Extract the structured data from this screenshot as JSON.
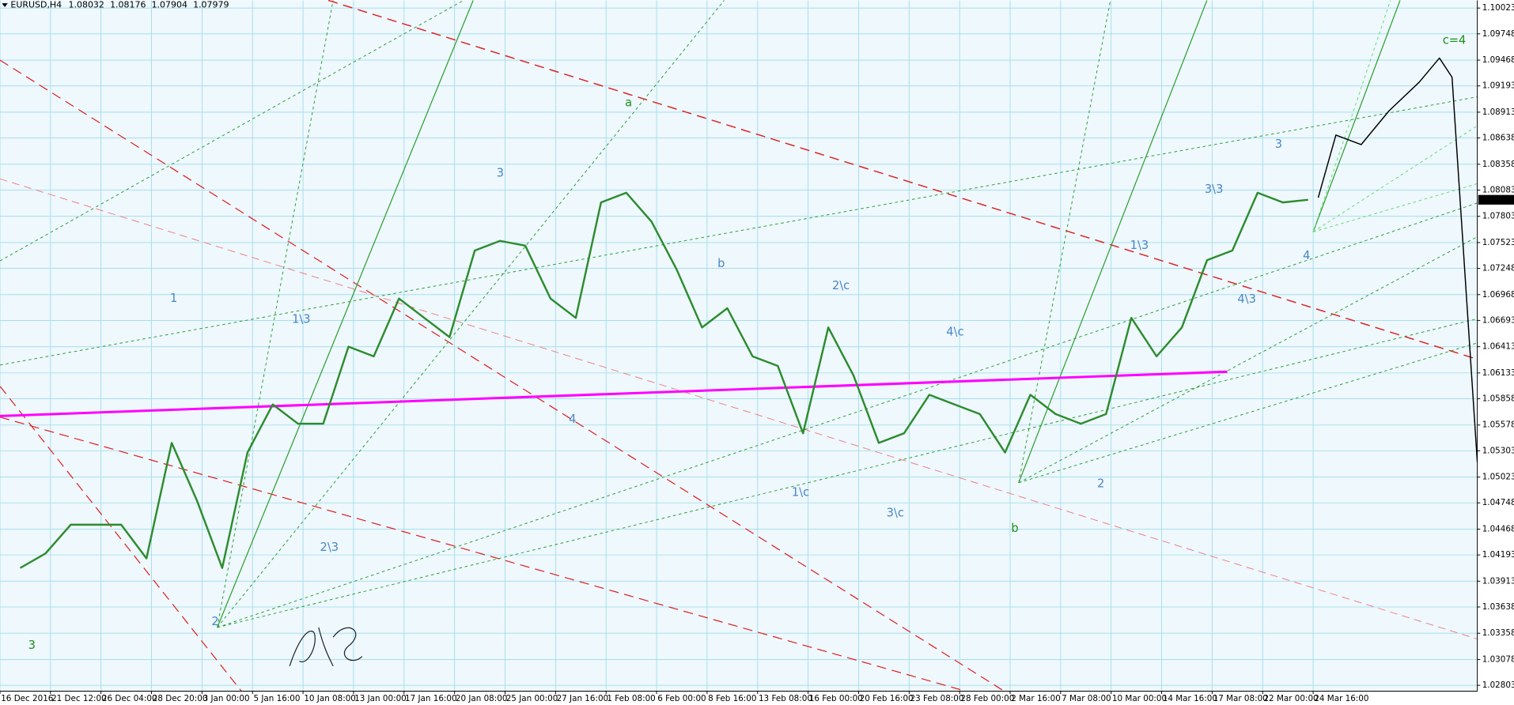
{
  "chart_data": {
    "type": "line",
    "symbol": "EURUSD,H4",
    "ohlc": [
      1.08032,
      1.08176,
      1.07904,
      1.07979
    ],
    "xlim": [
      0,
      58.5
    ],
    "ylim": [
      1.02741,
      1.10105
    ],
    "grid": true,
    "xticks": [
      {
        "value": 0,
        "label": "16 Dec 2016"
      },
      {
        "value": 2,
        "label": "21 Dec 12:00"
      },
      {
        "value": 4,
        "label": "26 Dec 04:00"
      },
      {
        "value": 6,
        "label": "28 Dec 20:00"
      },
      {
        "value": 8,
        "label": "3 Jan 00:00"
      },
      {
        "value": 10,
        "label": "5 Jan 16:00"
      },
      {
        "value": 12,
        "label": "10 Jan 08:00"
      },
      {
        "value": 14,
        "label": "13 Jan 00:00"
      },
      {
        "value": 16,
        "label": "17 Jan 16:00"
      },
      {
        "value": 18,
        "label": "20 Jan 08:00"
      },
      {
        "value": 20,
        "label": "25 Jan 00:00"
      },
      {
        "value": 22,
        "label": "27 Jan 16:00"
      },
      {
        "value": 24,
        "label": "1 Feb 08:00"
      },
      {
        "value": 26,
        "label": "6 Feb 00:00"
      },
      {
        "value": 28,
        "label": "8 Feb 16:00"
      },
      {
        "value": 30,
        "label": "13 Feb 08:00"
      },
      {
        "value": 32,
        "label": "16 Feb 00:00"
      },
      {
        "value": 34,
        "label": "20 Feb 16:00"
      },
      {
        "value": 36,
        "label": "23 Feb 08:00"
      },
      {
        "value": 38,
        "label": "28 Feb 00:00"
      },
      {
        "value": 40,
        "label": "2 Mar 16:00"
      },
      {
        "value": 42,
        "label": "7 Mar 08:00"
      },
      {
        "value": 44,
        "label": "10 Mar 00:00"
      },
      {
        "value": 46,
        "label": "14 Mar 16:00"
      },
      {
        "value": 48,
        "label": "17 Mar 08:00"
      },
      {
        "value": 50,
        "label": "22 Mar 00:00"
      },
      {
        "value": 52,
        "label": "24 Mar 16:00"
      }
    ],
    "yticks": [
      1.02803,
      1.03078,
      1.03358,
      1.03638,
      1.03913,
      1.04193,
      1.04468,
      1.04748,
      1.05023,
      1.05303,
      1.05578,
      1.05858,
      1.06133,
      1.06413,
      1.06693,
      1.06968,
      1.07248,
      1.07523,
      1.07803,
      1.08083,
      1.08358,
      1.08638,
      1.08913,
      1.09193,
      1.09468,
      1.09748,
      1.10023
    ],
    "series": [
      {
        "color": "#2e8b2e",
        "x": [
          0.8,
          1.8,
          2.8,
          3.8,
          4.8,
          5.8,
          6.8,
          7.8,
          8.8,
          9.8,
          10.8,
          11.8,
          12.8,
          13.8,
          14.8,
          15.8,
          16.8,
          17.8,
          18.8,
          19.8,
          20.8,
          21.8,
          22.8,
          23.8,
          24.8,
          25.8,
          26.8,
          27.8,
          28.8,
          29.8,
          30.8,
          31.8,
          32.8,
          33.8,
          34.8,
          35.8,
          36.8,
          37.8,
          38.8,
          39.8,
          40.8,
          41.8,
          42.8,
          43.8,
          44.8,
          45.8,
          46.8,
          47.8,
          48.8,
          49.8,
          50.8,
          51.8
        ],
        "values": [
          1.04054,
          1.04208,
          1.04515,
          1.04515,
          1.04515,
          1.04156,
          1.05387,
          1.04772,
          1.04054,
          1.05285,
          1.05797,
          1.05592,
          1.05592,
          1.06413,
          1.0631,
          1.06926,
          1.0672,
          1.06515,
          1.07438,
          1.07541,
          1.0749,
          1.06926,
          1.0672,
          1.07951,
          1.08054,
          1.07746,
          1.07233,
          1.06618,
          1.06823,
          1.0631,
          1.06208,
          1.0549,
          1.06618,
          1.06105,
          1.05387,
          1.0549,
          1.059,
          1.05797,
          1.05695,
          1.05285,
          1.059,
          1.05695,
          1.05592,
          1.05695,
          1.0672,
          1.0631,
          1.06618,
          1.07336,
          1.07438,
          1.08054,
          1.07951,
          1.07979
        ]
      },
      {
        "color": "#000000",
        "x": [
          52.2,
          52.9,
          53.9,
          55.0,
          56.2,
          57.0,
          57.5,
          58.5
        ],
        "values": [
          1.08002,
          1.08669,
          1.08567,
          1.08926,
          1.09233,
          1.0949,
          1.09285,
          1.05182
        ]
      }
    ],
    "trendline": {
      "color": "#ff00ff",
      "x": [
        0,
        48.6
      ],
      "values": [
        1.05674,
        1.06146
      ]
    },
    "annotations": [
      {
        "text": "a",
        "x": 24.89,
        "y": 1.09008,
        "color": "#1f8f1f"
      },
      {
        "text": "b",
        "x": 40.19,
        "y": 1.04474,
        "color": "#1f8f1f"
      },
      {
        "text": "c=4",
        "x": 57.59,
        "y": 1.09674,
        "color": "#1f8f1f"
      },
      {
        "text": "3",
        "x": 1.26,
        "y": 1.03223,
        "color": "#1f8f1f"
      },
      {
        "text": "1",
        "x": 6.88,
        "y": 1.06926,
        "color": "#4a86c8"
      },
      {
        "text": "2",
        "x": 8.52,
        "y": 1.03479,
        "color": "#4a86c8"
      },
      {
        "text": "1\\3",
        "x": 11.93,
        "y": 1.067,
        "color": "#4a86c8"
      },
      {
        "text": "2\\3",
        "x": 13.04,
        "y": 1.04269,
        "color": "#4a86c8"
      },
      {
        "text": "3",
        "x": 19.81,
        "y": 1.08259,
        "color": "#4a86c8"
      },
      {
        "text": "4",
        "x": 22.67,
        "y": 1.05633,
        "color": "#4a86c8"
      },
      {
        "text": "b",
        "x": 28.56,
        "y": 1.07295,
        "color": "#4a86c8"
      },
      {
        "text": "1\\c",
        "x": 31.7,
        "y": 1.04854,
        "color": "#4a86c8"
      },
      {
        "text": "2\\c",
        "x": 33.3,
        "y": 1.07059,
        "color": "#4a86c8"
      },
      {
        "text": "3\\c",
        "x": 35.45,
        "y": 1.04638,
        "color": "#4a86c8"
      },
      {
        "text": "4\\c",
        "x": 37.82,
        "y": 1.06567,
        "color": "#4a86c8"
      },
      {
        "text": "2",
        "x": 43.59,
        "y": 1.04946,
        "color": "#4a86c8"
      },
      {
        "text": "1\\3",
        "x": 45.12,
        "y": 1.0749,
        "color": "#4a86c8"
      },
      {
        "text": "3\\3",
        "x": 48.07,
        "y": 1.08085,
        "color": "#4a86c8"
      },
      {
        "text": "4\\3",
        "x": 49.37,
        "y": 1.06915,
        "color": "#4a86c8"
      },
      {
        "text": "3",
        "x": 50.63,
        "y": 1.08567,
        "color": "#4a86c8"
      },
      {
        "text": "4",
        "x": 51.74,
        "y": 1.07377,
        "color": "#4a86c8"
      }
    ]
  }
}
